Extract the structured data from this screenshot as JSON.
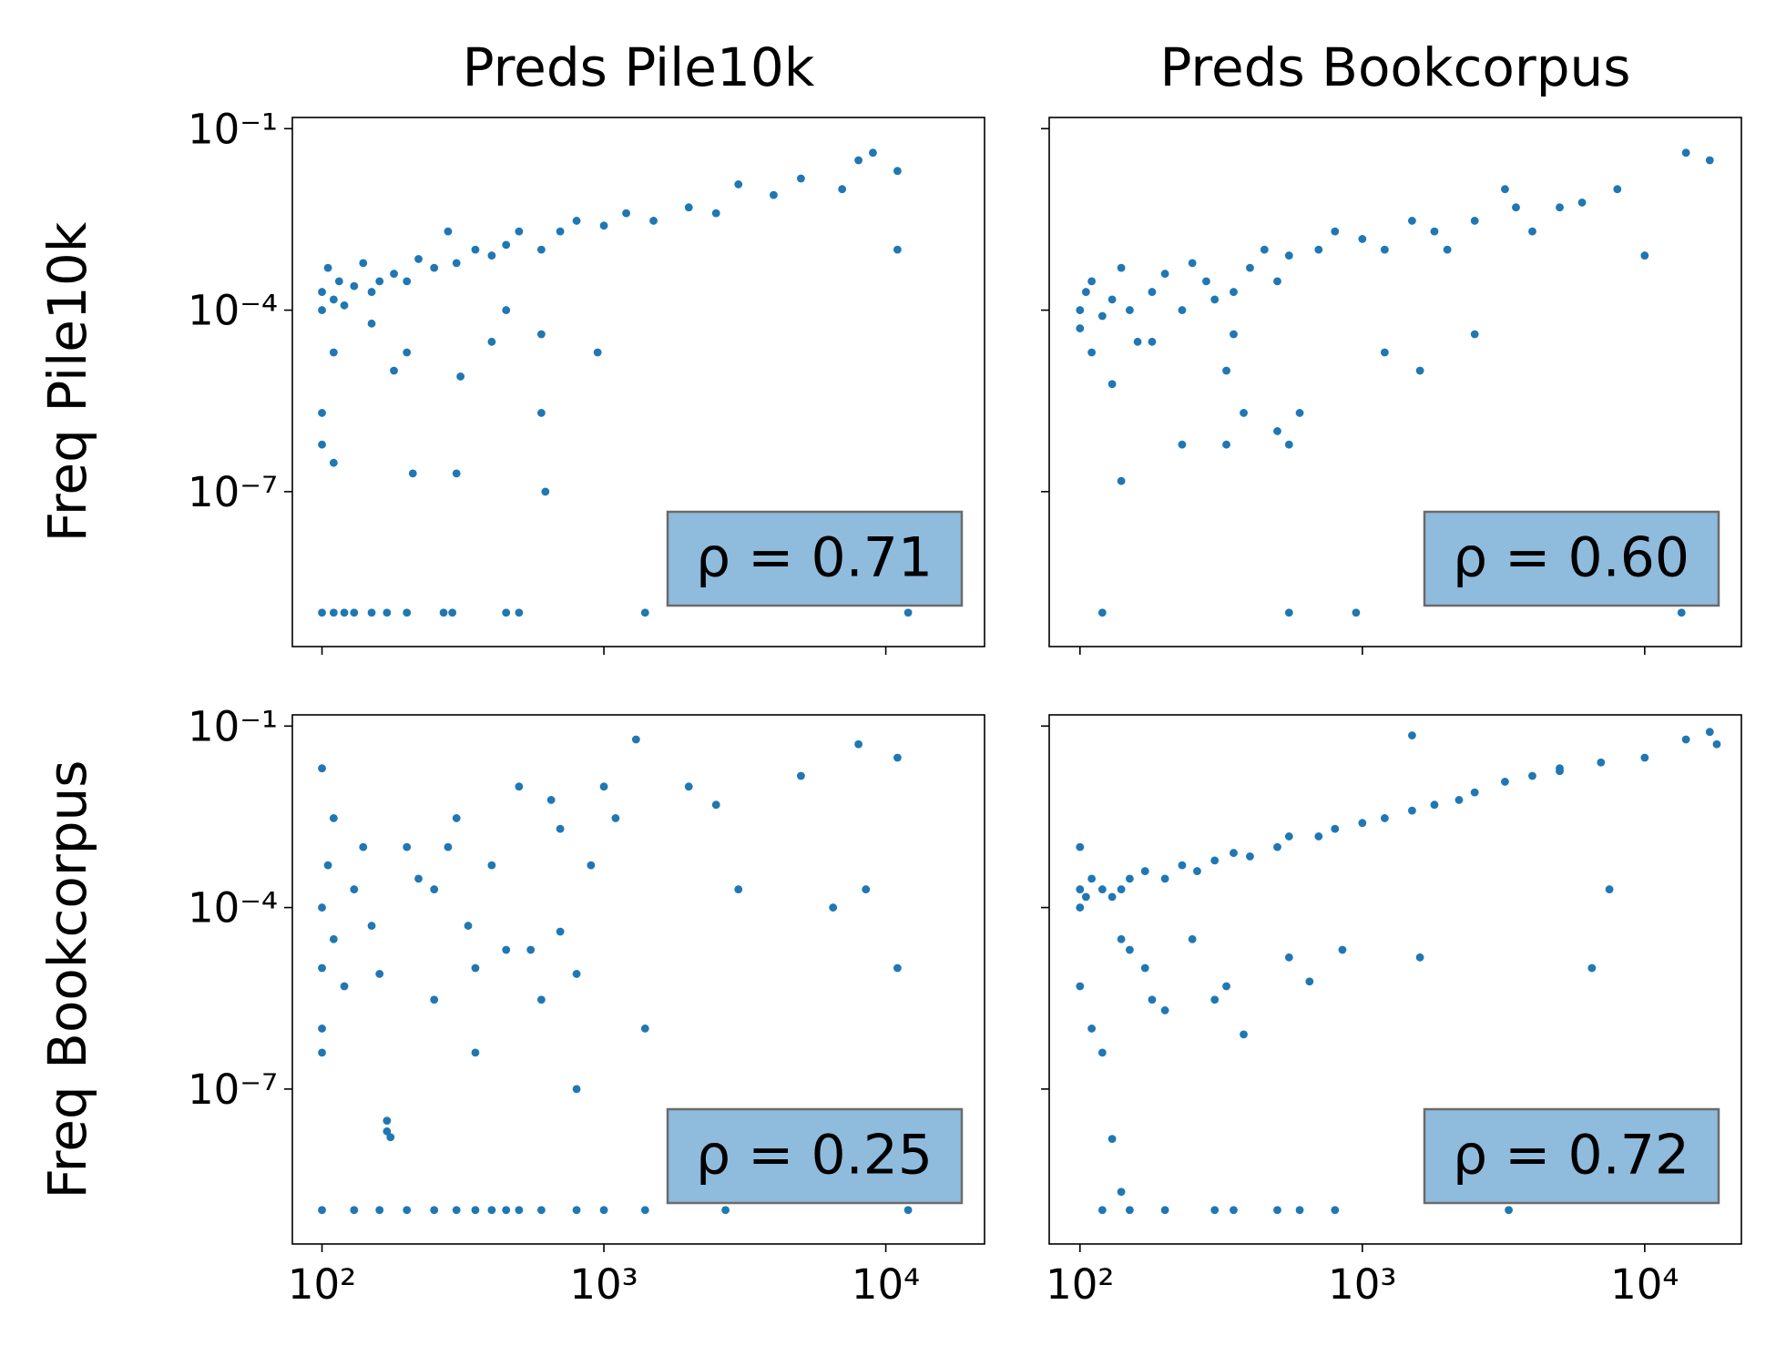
{
  "chart_data": [
    {
      "type": "scatter",
      "title": "Preds Pile10k",
      "ylabel": "Freq Pile10k",
      "log_x": true,
      "log_y": true,
      "xlim": [
        78.5,
        22400
      ],
      "ylim": [
        2.75e-10,
        0.153
      ],
      "xticks": [
        {
          "value": 100,
          "label": "10²"
        },
        {
          "value": 1000,
          "label": "10³"
        },
        {
          "value": 10000,
          "label": "10⁴"
        }
      ],
      "xticklabels": false,
      "yticks": [
        {
          "value": 0.1,
          "label": "10⁻¹"
        },
        {
          "value": 0.0001,
          "label": "10⁻⁴"
        },
        {
          "value": 1e-07,
          "label": "10⁻⁷"
        }
      ],
      "yticklabels": true,
      "annotation": "ρ = 0.71",
      "series": [
        {
          "color": "#1f77b4",
          "x": [
            100,
            100,
            105,
            110,
            115,
            120,
            130,
            140,
            150,
            160,
            180,
            200,
            220,
            250,
            280,
            300,
            350,
            400,
            450,
            500,
            600,
            700,
            800,
            1000,
            1200,
            1500,
            2000,
            2500,
            3000,
            4000,
            5000,
            7000,
            8000,
            9000,
            11000,
            11000,
            100,
            100,
            110,
            110,
            150,
            180,
            200,
            210,
            300,
            310,
            400,
            450,
            600,
            620,
            950,
            600,
            100,
            110,
            120,
            130,
            150,
            170,
            200,
            270,
            290,
            450,
            500,
            1400,
            12000
          ],
          "y": [
            0.0002,
            0.0001,
            0.0005,
            0.00015,
            0.0003,
            0.00012,
            0.00025,
            0.0006,
            0.0002,
            0.0003,
            0.0004,
            0.0003,
            0.0007,
            0.0005,
            0.002,
            0.0006,
            0.001,
            0.0008,
            0.0012,
            0.002,
            0.001,
            0.002,
            0.003,
            0.0025,
            0.004,
            0.003,
            0.005,
            0.004,
            0.012,
            0.008,
            0.015,
            0.01,
            0.03,
            0.04,
            0.02,
            0.001,
            2e-06,
            6e-07,
            3e-07,
            2e-05,
            6e-05,
            1e-05,
            2e-05,
            2e-07,
            2e-07,
            8e-06,
            3e-05,
            0.0001,
            2e-06,
            1e-07,
            2e-05,
            4e-05,
            1e-09,
            1e-09,
            1e-09,
            1e-09,
            1e-09,
            1e-09,
            1e-09,
            1e-09,
            1e-09,
            1e-09,
            1e-09,
            1e-09,
            1e-09
          ]
        }
      ]
    },
    {
      "type": "scatter",
      "title": "Preds Bookcorpus",
      "log_x": true,
      "log_y": true,
      "xlim": [
        77.8,
        22000
      ],
      "ylim": [
        2.75e-10,
        0.153
      ],
      "xticks": [
        {
          "value": 100,
          "label": "10²"
        },
        {
          "value": 1000,
          "label": "10³"
        },
        {
          "value": 10000,
          "label": "10⁴"
        }
      ],
      "xticklabels": false,
      "yticks": [
        {
          "value": 0.1,
          "label": "10⁻¹"
        },
        {
          "value": 0.0001,
          "label": "10⁻⁴"
        },
        {
          "value": 1e-07,
          "label": "10⁻⁷"
        }
      ],
      "yticklabels": false,
      "annotation": "ρ = 0.60",
      "series": [
        {
          "color": "#1f77b4",
          "x": [
            100,
            100,
            105,
            110,
            110,
            120,
            130,
            130,
            140,
            150,
            160,
            180,
            200,
            230,
            250,
            280,
            300,
            350,
            400,
            450,
            500,
            550,
            700,
            800,
            1000,
            1200,
            1500,
            1800,
            2000,
            2500,
            3200,
            3500,
            4000,
            5000,
            6000,
            8000,
            10000,
            14000,
            17000,
            2500,
            1200,
            1600,
            140,
            230,
            330,
            380,
            500,
            550,
            600,
            330,
            180,
            350,
            120,
            550,
            950,
            13500
          ],
          "y": [
            0.0001,
            5e-05,
            0.0002,
            0.0003,
            2e-05,
            8e-05,
            0.00015,
            6e-06,
            0.0005,
            0.0001,
            3e-05,
            0.0002,
            0.0004,
            0.0001,
            0.0006,
            0.0003,
            0.00015,
            0.0002,
            0.0005,
            0.001,
            0.0003,
            0.0008,
            0.001,
            0.002,
            0.0015,
            0.001,
            0.003,
            0.002,
            0.001,
            0.003,
            0.01,
            0.005,
            0.002,
            0.005,
            0.006,
            0.01,
            0.0008,
            0.04,
            0.03,
            4e-05,
            2e-05,
            1e-05,
            1.5e-07,
            6e-07,
            6e-07,
            2e-06,
            1e-06,
            6e-07,
            2e-06,
            1e-05,
            3e-05,
            4e-05,
            1e-09,
            1e-09,
            1e-09,
            1e-09
          ]
        }
      ]
    },
    {
      "type": "scatter",
      "ylabel": "Freq Bookcorpus",
      "log_x": true,
      "log_y": true,
      "xlim": [
        78.5,
        22400
      ],
      "ylim": [
        2.75e-10,
        0.153
      ],
      "xticks": [
        {
          "value": 100,
          "label": "10²"
        },
        {
          "value": 1000,
          "label": "10³"
        },
        {
          "value": 10000,
          "label": "10⁴"
        }
      ],
      "xticklabels": true,
      "yticks": [
        {
          "value": 0.1,
          "label": "10⁻¹"
        },
        {
          "value": 0.0001,
          "label": "10⁻⁴"
        },
        {
          "value": 1e-07,
          "label": "10⁻⁷"
        }
      ],
      "yticklabels": true,
      "annotation": "ρ = 0.25",
      "series": [
        {
          "color": "#1f77b4",
          "x": [
            100,
            100,
            100,
            100,
            100,
            105,
            110,
            110,
            120,
            130,
            140,
            150,
            160,
            170,
            170,
            175,
            200,
            220,
            250,
            250,
            280,
            300,
            330,
            350,
            400,
            450,
            500,
            550,
            600,
            650,
            700,
            800,
            900,
            1000,
            1100,
            1300,
            1400,
            2000,
            2500,
            3000,
            5000,
            6500,
            8000,
            8500,
            11000,
            11000,
            700,
            800,
            350,
            100,
            130,
            160,
            200,
            250,
            300,
            350,
            400,
            450,
            500,
            600,
            800,
            1000,
            1400,
            2700,
            12000
          ],
          "y": [
            0.02,
            0.0001,
            1e-05,
            4e-07,
            1e-06,
            0.0005,
            0.003,
            3e-05,
            5e-06,
            0.0002,
            0.001,
            5e-05,
            8e-06,
            3e-08,
            2e-08,
            1.6e-08,
            0.001,
            0.0003,
            0.0002,
            3e-06,
            0.001,
            0.003,
            5e-05,
            1e-05,
            0.0005,
            2e-05,
            0.01,
            2e-05,
            3e-06,
            0.006,
            0.002,
            1e-07,
            0.0005,
            0.01,
            0.003,
            0.06,
            1e-06,
            0.01,
            0.005,
            0.0002,
            0.015,
            0.0001,
            0.05,
            0.0002,
            0.03,
            1e-05,
            4e-05,
            8e-06,
            4e-07,
            1e-09,
            1e-09,
            1e-09,
            1e-09,
            1e-09,
            1e-09,
            1e-09,
            1e-09,
            1e-09,
            1e-09,
            1e-09,
            1e-09,
            1e-09,
            1e-09,
            1e-09,
            1e-09
          ]
        }
      ]
    },
    {
      "type": "scatter",
      "log_x": true,
      "log_y": true,
      "xlim": [
        77.8,
        22000
      ],
      "ylim": [
        2.75e-10,
        0.153
      ],
      "xticks": [
        {
          "value": 100,
          "label": "10²"
        },
        {
          "value": 1000,
          "label": "10³"
        },
        {
          "value": 10000,
          "label": "10⁴"
        }
      ],
      "xticklabels": true,
      "yticks": [
        {
          "value": 0.1,
          "label": "10⁻¹"
        },
        {
          "value": 0.0001,
          "label": "10⁻⁴"
        },
        {
          "value": 1e-07,
          "label": "10⁻⁷"
        }
      ],
      "yticklabels": false,
      "annotation": "ρ = 0.72",
      "series": [
        {
          "color": "#1f77b4",
          "x": [
            100,
            100,
            100,
            105,
            110,
            120,
            130,
            140,
            150,
            170,
            200,
            230,
            260,
            300,
            350,
            400,
            500,
            550,
            700,
            800,
            1000,
            1200,
            1500,
            1800,
            2200,
            2500,
            3200,
            4000,
            5000,
            7000,
            10000,
            14000,
            17000,
            1500,
            5000,
            18000,
            100,
            110,
            120,
            140,
            150,
            170,
            180,
            200,
            250,
            300,
            330,
            380,
            550,
            650,
            850,
            1600,
            6500,
            7500,
            130,
            140,
            120,
            150,
            200,
            300,
            350,
            500,
            600,
            800,
            3300
          ],
          "y": [
            0.0002,
            0.0001,
            0.001,
            0.00015,
            0.0003,
            0.0002,
            0.00015,
            0.0002,
            0.0003,
            0.0004,
            0.0003,
            0.0005,
            0.0004,
            0.0006,
            0.0008,
            0.0007,
            0.001,
            0.0015,
            0.0015,
            0.002,
            0.0025,
            0.003,
            0.004,
            0.005,
            0.006,
            0.008,
            0.012,
            0.015,
            0.02,
            0.025,
            0.03,
            0.06,
            0.08,
            0.07,
            0.018,
            0.05,
            5e-06,
            1e-06,
            4e-07,
            3e-05,
            2e-05,
            1e-05,
            3e-06,
            2e-06,
            3e-05,
            3e-06,
            5e-06,
            8e-07,
            1.5e-05,
            6e-06,
            2e-05,
            1.5e-05,
            1e-05,
            0.0002,
            1.5e-08,
            2e-09,
            1e-09,
            1e-09,
            1e-09,
            1e-09,
            1e-09,
            1e-09,
            1e-09,
            1e-09,
            1e-09
          ]
        }
      ]
    }
  ]
}
